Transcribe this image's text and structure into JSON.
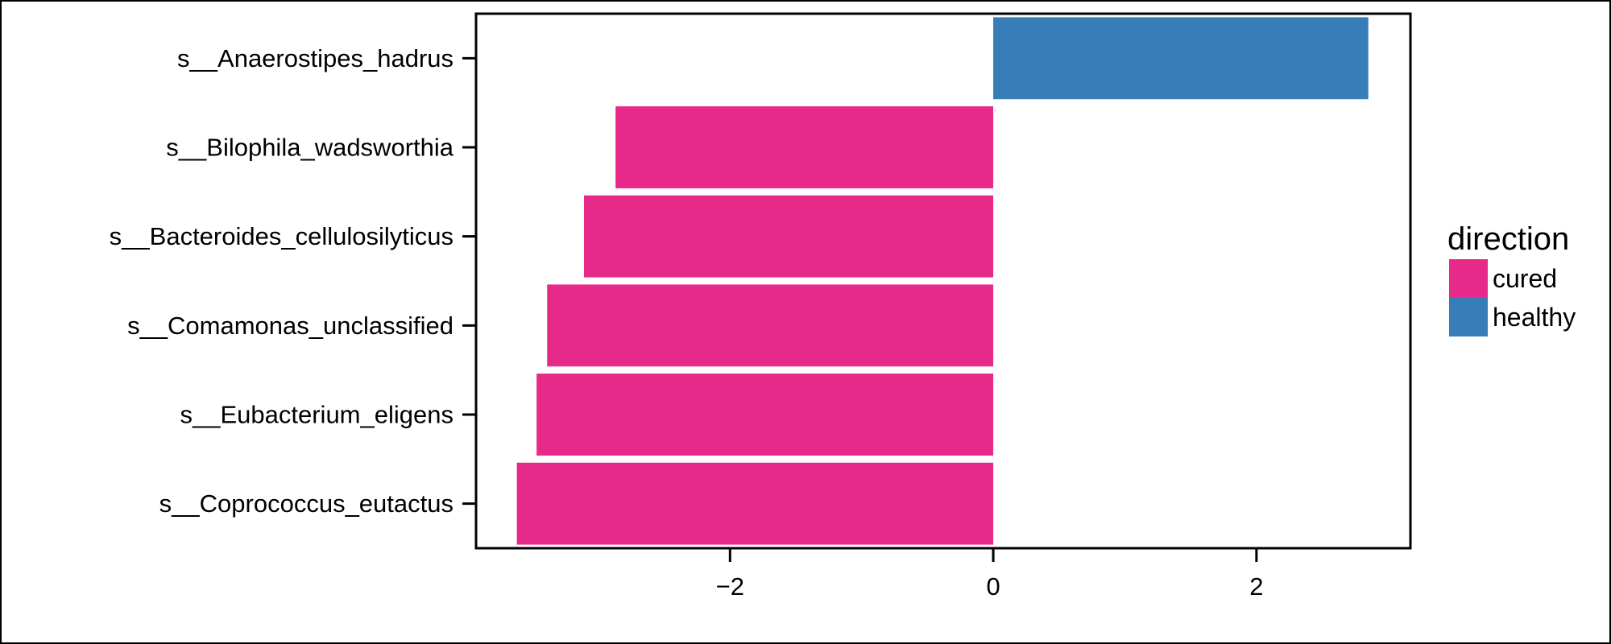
{
  "chart_data": {
    "type": "bar",
    "orientation": "horizontal",
    "categories": [
      "s__Anaerostipes_hadrus",
      "s__Bilophila_wadsworthia",
      "s__Bacteroides_cellulosilyticus",
      "s__Comamonas_unclassified",
      "s__Eubacterium_eligens",
      "s__Coprococcus_eutactus"
    ],
    "values": [
      2.85,
      -2.87,
      -3.11,
      -3.39,
      -3.47,
      -3.62
    ],
    "direction": [
      "healthy",
      "cured",
      "cured",
      "cured",
      "cured",
      "cured"
    ],
    "xlim": [
      -3.93,
      3.17
    ],
    "xticks": [
      {
        "value": -2,
        "label": "−2"
      },
      {
        "value": 0,
        "label": "0"
      },
      {
        "value": 2,
        "label": "2"
      }
    ],
    "title": "",
    "xlabel": "",
    "ylabel": "",
    "grid": false,
    "legend": {
      "title": "direction",
      "position": "right",
      "entries": [
        {
          "label": "cured",
          "color": "#E7298A"
        },
        {
          "label": "healthy",
          "color": "#377EB8"
        }
      ]
    }
  }
}
